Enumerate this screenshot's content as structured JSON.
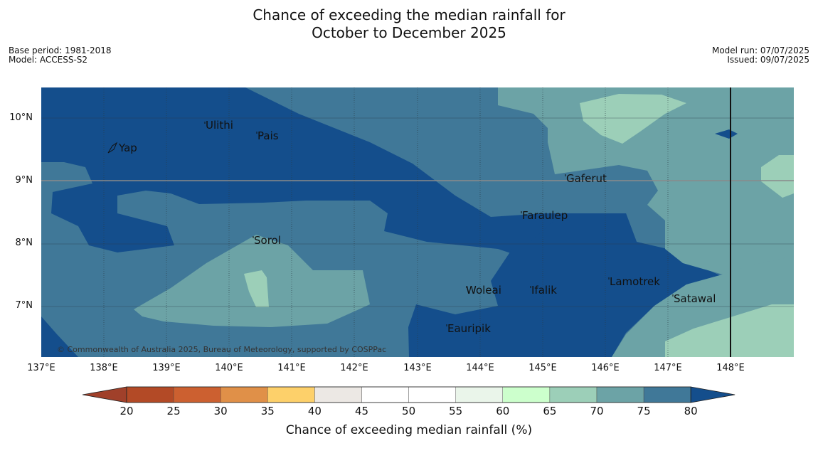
{
  "title": {
    "line1": "Chance of exceeding the median rainfall for",
    "line2": "October to December 2025"
  },
  "meta": {
    "base_period": "Base period: 1981-2018",
    "model": "Model: ACCESS-S2",
    "model_run": "Model run: 07/07/2025",
    "issued": "Issued: 09/07/2025"
  },
  "map": {
    "lat_labels": [
      "10°N",
      "9°N",
      "8°N",
      "7°N"
    ],
    "lon_labels": [
      "137°E",
      "138°E",
      "139°E",
      "140°E",
      "141°E",
      "142°E",
      "143°E",
      "144°E",
      "145°E",
      "146°E",
      "147°E",
      "148°E"
    ],
    "places": [
      "Yap",
      "Ulithi",
      "Pais",
      "Gaferut",
      "Faraulep",
      "Sorol",
      "Woleai",
      "Ifalik",
      "Lamotrek",
      "Satawal",
      "Eauripik"
    ],
    "copyright": "© Commonwealth of Australia 2025, Bureau of Meteorology, supported by COSPPac"
  },
  "colorbar": {
    "ticks": [
      "20",
      "25",
      "30",
      "35",
      "40",
      "45",
      "50",
      "55",
      "60",
      "65",
      "70",
      "75",
      "80"
    ],
    "colors": [
      "#b34a26",
      "#cc6030",
      "#e09048",
      "#fdd06a",
      "#ece8e4",
      "#ffffff",
      "#ffffff",
      "#eaf5ea",
      "#ccffcc",
      "#9ccfb8",
      "#6ca3a6",
      "#407898"
    ],
    "under_color": "#a0402a",
    "over_color": "#144e8c",
    "label": "Chance of exceeding median rainfall (%)"
  }
}
